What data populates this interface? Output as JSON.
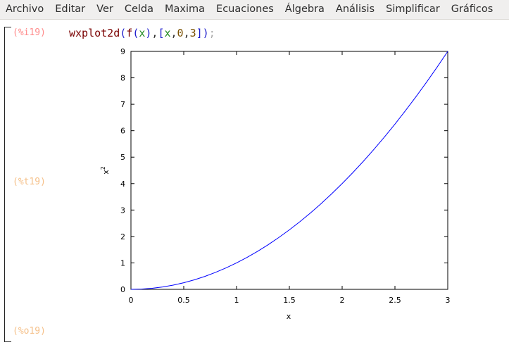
{
  "menu": [
    "Archivo",
    "Editar",
    "Ver",
    "Celda",
    "Maxima",
    "Ecuaciones",
    "Álgebra",
    "Análisis",
    "Simplificar",
    "Gráficos"
  ],
  "cell": {
    "input_label": "(%i19)",
    "text_label": "(%t19)",
    "output_label": "(%o19)",
    "command": {
      "fn": "wxplot2d",
      "open_paren": "(",
      "f": "f",
      "f_open": "(",
      "arg": "x",
      "f_close": ")",
      "comma1": ",",
      "lbracket": "[",
      "var": "x",
      "comma2": ",",
      "start": "0",
      "comma3": ",",
      "end": "3",
      "rbracket": "]",
      "close_paren": ")",
      "semicolon": ";"
    }
  },
  "chart_data": {
    "type": "line",
    "function": "x^2",
    "xlabel": "x",
    "ylabel": "x",
    "ylabel_exponent": "2",
    "xlim": [
      0,
      3
    ],
    "ylim": [
      0,
      9
    ],
    "xticks": [
      "0",
      "0.5",
      "1",
      "1.5",
      "2",
      "2.5",
      "3"
    ],
    "yticks": [
      "0",
      "1",
      "2",
      "3",
      "4",
      "5",
      "6",
      "7",
      "8",
      "9"
    ],
    "series": [
      {
        "color": "#0000ff",
        "x": [
          0,
          0.1,
          0.2,
          0.3,
          0.4,
          0.5,
          0.6,
          0.7,
          0.8,
          0.9,
          1.0,
          1.1,
          1.2,
          1.3,
          1.4,
          1.5,
          1.6,
          1.7,
          1.8,
          1.9,
          2.0,
          2.1,
          2.2,
          2.3,
          2.4,
          2.5,
          2.6,
          2.7,
          2.8,
          2.9,
          3.0
        ],
        "y": [
          0,
          0.01,
          0.04,
          0.09,
          0.16,
          0.25,
          0.36,
          0.49,
          0.64,
          0.81,
          1.0,
          1.21,
          1.44,
          1.69,
          1.96,
          2.25,
          2.56,
          2.89,
          3.24,
          3.61,
          4.0,
          4.41,
          4.84,
          5.29,
          5.76,
          6.25,
          6.76,
          7.29,
          7.84,
          8.41,
          9.0
        ]
      }
    ],
    "grid": false
  }
}
